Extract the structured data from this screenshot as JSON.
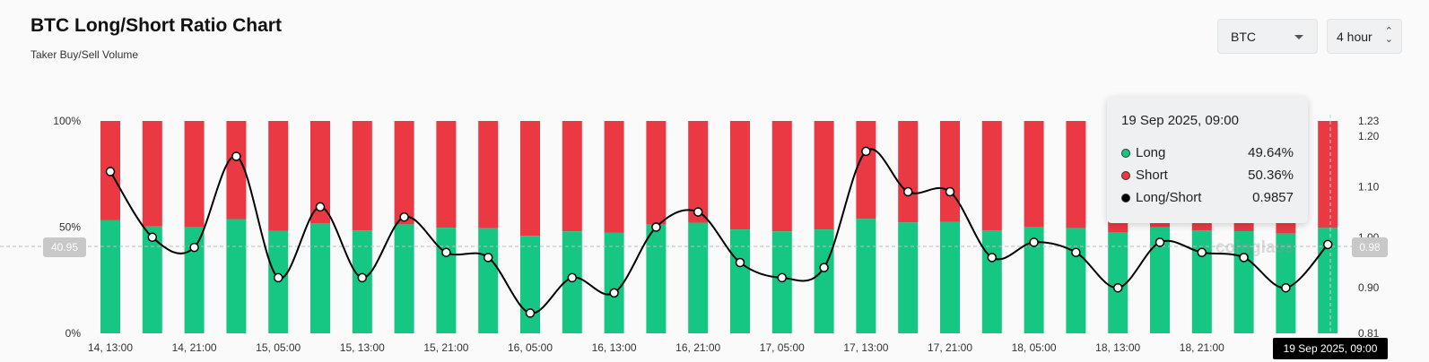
{
  "header": {
    "title": "BTC Long/Short Ratio Chart",
    "subtitle": "Taker Buy/Sell Volume"
  },
  "controls": {
    "coin": "BTC",
    "interval": "4 hour"
  },
  "tooltip": {
    "date": "19 Sep 2025, 09:00",
    "rows": [
      {
        "label": "Long",
        "value": "49.64%",
        "color": "#16c784"
      },
      {
        "label": "Short",
        "value": "50.36%",
        "color": "#ea3943"
      },
      {
        "label": "Long/Short",
        "value": "0.9857",
        "color": "#000000"
      }
    ]
  },
  "crosshair": {
    "left_label": "40.95",
    "right_label": "0.98",
    "bottom_label": "19 Sep 2025, 09:00"
  },
  "watermark": "coinglass",
  "chart_data": {
    "type": "bar",
    "x_tick_labels": [
      "14, 13:00",
      "14, 21:00",
      "15, 05:00",
      "15, 13:00",
      "15, 21:00",
      "16, 05:00",
      "16, 13:00",
      "16, 21:00",
      "17, 05:00",
      "17, 13:00",
      "17, 21:00",
      "18, 05:00",
      "18, 13:00",
      "18, 21:00",
      "19"
    ],
    "left_axis": {
      "ticks": [
        "100%",
        "50%",
        "0%"
      ],
      "ylim": [
        0,
        100
      ]
    },
    "right_axis": {
      "ticks": [
        "1.23",
        "1.20",
        "1.10",
        "1.00",
        "0.90",
        "0.81"
      ],
      "ylim": [
        0.81,
        1.23
      ]
    },
    "series": [
      {
        "name": "Long",
        "color": "#16c784",
        "values": [
          53.2,
          50.3,
          49.9,
          53.8,
          48.3,
          51.9,
          48.4,
          51.3,
          49.7,
          49.5,
          45.9,
          48.0,
          47.3,
          51.2,
          52.1,
          48.9,
          48.0,
          48.9,
          53.9,
          52.2,
          52.4,
          48.5,
          49.9,
          49.6,
          47.4,
          49.9,
          48.5,
          48.1,
          47.0,
          49.64
        ]
      },
      {
        "name": "Short",
        "color": "#ea3943",
        "values": [
          46.8,
          49.7,
          50.1,
          46.2,
          51.7,
          48.1,
          51.6,
          48.7,
          50.3,
          50.5,
          54.1,
          52.0,
          52.7,
          48.8,
          47.9,
          51.1,
          52.0,
          51.1,
          46.1,
          47.8,
          47.6,
          51.5,
          50.1,
          50.4,
          52.6,
          50.1,
          51.5,
          51.9,
          53.0,
          50.36
        ]
      },
      {
        "name": "Long/Short",
        "color": "#000000",
        "values": [
          1.13,
          1.0,
          0.98,
          1.16,
          0.92,
          1.06,
          0.92,
          1.04,
          0.97,
          0.96,
          0.85,
          0.92,
          0.89,
          1.02,
          1.05,
          0.95,
          0.92,
          0.94,
          1.17,
          1.09,
          1.09,
          0.96,
          0.99,
          0.97,
          0.9,
          0.99,
          0.97,
          0.96,
          0.9,
          0.9857
        ]
      }
    ]
  }
}
